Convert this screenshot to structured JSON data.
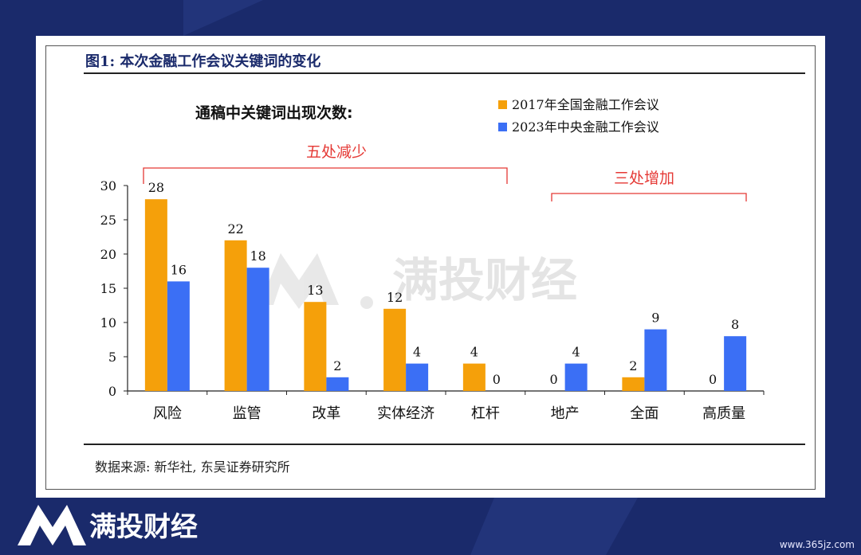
{
  "figure": {
    "title": "图1:  本次金融工作会议关键词的变化",
    "source": "数据来源:  新华社,  东吴证券研究所"
  },
  "watermark": {
    "text": "满投财经"
  },
  "footer": {
    "brand": "满投财经",
    "url": "www.365jz.com"
  },
  "colors": {
    "series_2017": "#f5a00a",
    "series_2023": "#3b6ff5",
    "annotation": "#e53935",
    "background": "#1a2a6b"
  },
  "chart_data": {
    "type": "bar",
    "title": "通稿中关键词出现次数:",
    "categories": [
      "风险",
      "监管",
      "改革",
      "实体经济",
      "杠杆",
      "地产",
      "全面",
      "高质量"
    ],
    "series": [
      {
        "name": "2017年全国金融工作会议",
        "values": [
          28,
          22,
          13,
          12,
          4,
          0,
          2,
          0
        ]
      },
      {
        "name": "2023年中央金融工作会议",
        "values": [
          16,
          18,
          2,
          4,
          0,
          4,
          9,
          8
        ]
      }
    ],
    "ylim": [
      0,
      30
    ],
    "yticks": [
      0,
      5,
      10,
      15,
      20,
      25,
      30
    ],
    "legend_position": "top-right",
    "grid": false,
    "annotations": [
      {
        "text": "五处减少",
        "categories": [
          "风险",
          "监管",
          "改革",
          "实体经济",
          "杠杆"
        ]
      },
      {
        "text": "三处增加",
        "categories": [
          "地产",
          "全面",
          "高质量"
        ]
      }
    ]
  }
}
